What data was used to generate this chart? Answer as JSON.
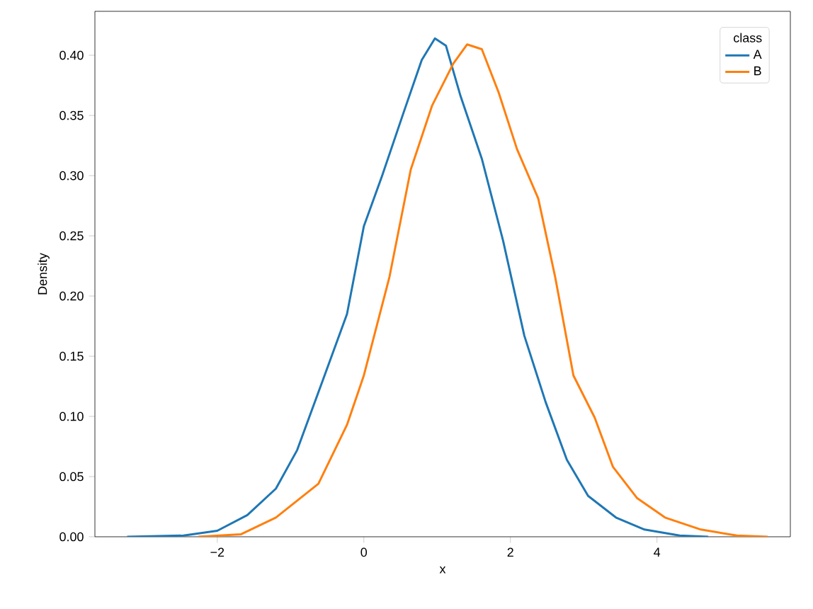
{
  "chart_data": {
    "type": "line",
    "xlabel": "x",
    "ylabel": "Density",
    "legend_title": "class",
    "legend": "top right",
    "xlim": [
      -3.67,
      5.82
    ],
    "ylim": [
      0,
      0.4365
    ],
    "xticks": [
      {
        "value": -2,
        "label": "−2"
      },
      {
        "value": 0,
        "label": "0"
      },
      {
        "value": 2,
        "label": "2"
      },
      {
        "value": 4,
        "label": "4"
      }
    ],
    "yticks": [
      {
        "value": 0,
        "label": "0.00"
      },
      {
        "value": 0.05,
        "label": "0.05"
      },
      {
        "value": 0.1,
        "label": "0.10"
      },
      {
        "value": 0.15,
        "label": "0.15"
      },
      {
        "value": 0.2,
        "label": "0.20"
      },
      {
        "value": 0.25,
        "label": "0.25"
      },
      {
        "value": 0.3,
        "label": "0.30"
      },
      {
        "value": 0.35,
        "label": "0.35"
      },
      {
        "value": 0.4,
        "label": "0.40"
      }
    ],
    "series": [
      {
        "name": "A",
        "color": "#1f77b4",
        "x": [
          -3.23,
          -2.46,
          -2.0,
          -1.59,
          -1.2,
          -0.91,
          -0.56,
          -0.23,
          0,
          0.25,
          0.54,
          0.79,
          0.97,
          1.12,
          1.32,
          1.61,
          1.9,
          2.19,
          2.48,
          2.77,
          3.06,
          3.44,
          3.83,
          4.31,
          4.7
        ],
        "values": [
          0,
          0.001,
          0.005,
          0.018,
          0.04,
          0.072,
          0.13,
          0.185,
          0.258,
          0.3,
          0.352,
          0.396,
          0.414,
          0.408,
          0.366,
          0.314,
          0.246,
          0.167,
          0.112,
          0.064,
          0.034,
          0.016,
          0.006,
          0.001,
          0
        ]
      },
      {
        "name": "B",
        "color": "#ff7f0e",
        "x": [
          -2.26,
          -1.68,
          -1.2,
          -0.62,
          -0.23,
          0,
          0.35,
          0.64,
          0.93,
          1.22,
          1.41,
          1.61,
          1.84,
          2.09,
          2.38,
          2.61,
          2.86,
          3.15,
          3.4,
          3.73,
          4.11,
          4.6,
          5.09,
          5.51
        ],
        "values": [
          0,
          0.002,
          0.016,
          0.044,
          0.093,
          0.134,
          0.216,
          0.305,
          0.358,
          0.393,
          0.409,
          0.405,
          0.369,
          0.322,
          0.281,
          0.216,
          0.134,
          0.099,
          0.058,
          0.032,
          0.016,
          0.006,
          0.001,
          0
        ]
      }
    ]
  }
}
